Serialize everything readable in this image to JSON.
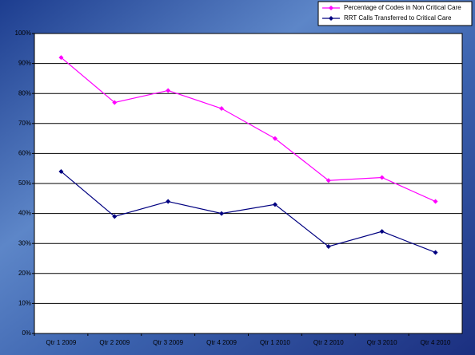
{
  "chart_data": {
    "type": "line",
    "categories": [
      "Qtr 1 2009",
      "Qtr 2 2009",
      "Qtr 3 2009",
      "Qtr 4 2009",
      "Qtr 1 2010",
      "Qtr 2 2010",
      "Qtr 3 2010",
      "Qtr 4 2010"
    ],
    "series": [
      {
        "name": "Percentage of Codes in Non Critical Care",
        "color": "#ff00ff",
        "values": [
          92,
          77,
          81,
          75,
          65,
          51,
          52,
          44
        ]
      },
      {
        "name": "RRT Calls Transferred to Critical Care",
        "color": "#000080",
        "values": [
          54,
          39,
          44,
          40,
          43,
          29,
          34,
          27
        ]
      }
    ],
    "ylim": [
      0,
      100
    ],
    "yticks": [
      {
        "value": 0,
        "label": "0%"
      },
      {
        "value": 10,
        "label": "10%"
      },
      {
        "value": 20,
        "label": "20%"
      },
      {
        "value": 30,
        "label": "30%"
      },
      {
        "value": 40,
        "label": "40%"
      },
      {
        "value": 50,
        "label": "50%"
      },
      {
        "value": 60,
        "label": "60%"
      },
      {
        "value": 70,
        "label": "70%"
      },
      {
        "value": 80,
        "label": "80%"
      },
      {
        "value": 90,
        "label": "90%"
      },
      {
        "value": 100,
        "label": "100%"
      }
    ],
    "grid": true,
    "legend": "top-right"
  }
}
